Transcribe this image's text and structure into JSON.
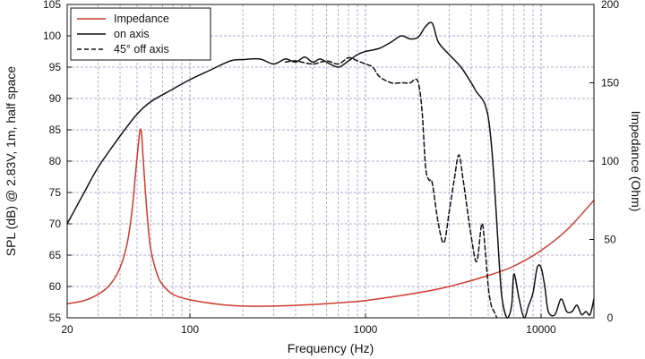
{
  "chart_data": {
    "type": "line",
    "xlabel": "Frequency (Hz)",
    "ylabel": "SPL (dB) @ 2.83V, 1m, half space",
    "y2label": "Impedance (Ohm)",
    "x_scale": "log",
    "xlim": [
      20,
      20000
    ],
    "ylim": [
      55,
      105
    ],
    "y2lim": [
      0,
      200
    ],
    "x_ticks": [
      20,
      100,
      1000,
      10000
    ],
    "x_tick_labels": [
      "20",
      "100",
      "1000",
      "10000"
    ],
    "y_ticks": [
      55,
      60,
      65,
      70,
      75,
      80,
      85,
      90,
      95,
      100,
      105
    ],
    "y_tick_labels": [
      "55",
      "60",
      "65",
      "70",
      "75",
      "80",
      "85",
      "90",
      "95",
      "100",
      "105"
    ],
    "y2_ticks": [
      0,
      50,
      100,
      150,
      200
    ],
    "y2_tick_labels": [
      "0",
      "50",
      "100",
      "150",
      "200"
    ],
    "grid": true,
    "legend_position": "top-left",
    "colors": {
      "impedance": "#cc3b2e",
      "on_axis": "#111111",
      "off_axis": "#111111",
      "grid": "#9a8fc4"
    },
    "series": [
      {
        "name": "Impedance",
        "axis": "right",
        "style": "solid",
        "color": "#cc3b2e",
        "x": [
          20,
          25,
          30,
          35,
          40,
          44,
          47,
          49,
          51,
          52,
          53,
          54,
          56,
          58,
          60,
          65,
          70,
          80,
          100,
          150,
          200,
          300,
          500,
          800,
          1000,
          2000,
          3000,
          5000,
          7000,
          10000,
          14000,
          20000
        ],
        "y": [
          9,
          11,
          15,
          21,
          32,
          48,
          70,
          92,
          112,
          120,
          118,
          104,
          78,
          57,
          43,
          28,
          21,
          15,
          11.5,
          8.5,
          7.5,
          7.5,
          8.5,
          10,
          11,
          16,
          20,
          27,
          33,
          43,
          56,
          75
        ]
      },
      {
        "name": "on axis",
        "axis": "left",
        "style": "solid",
        "color": "#111111",
        "x": [
          20,
          25,
          30,
          40,
          50,
          60,
          80,
          100,
          130,
          170,
          200,
          250,
          300,
          350,
          400,
          450,
          500,
          550,
          600,
          700,
          800,
          900,
          1000,
          1200,
          1400,
          1600,
          1800,
          2000,
          2200,
          2400,
          2600,
          3000,
          3500,
          4000,
          4300,
          4600,
          4800,
          5000,
          5200,
          5400,
          5600,
          5800,
          6000,
          6400,
          6800,
          7000,
          7500,
          8000,
          8500,
          9000,
          9500,
          10000,
          10500,
          11000,
          12000,
          13000,
          14000,
          15000,
          16000,
          17000,
          18000,
          19000,
          20000
        ],
        "y": [
          70,
          75,
          79,
          84,
          87.5,
          89.5,
          91.5,
          93,
          94.5,
          96,
          96.2,
          96.3,
          95.5,
          96.3,
          95.8,
          96.6,
          95.8,
          96.3,
          95.8,
          95,
          96,
          97,
          97.5,
          98,
          99,
          100,
          99.5,
          99.8,
          101.5,
          102,
          99,
          97,
          95,
          92.5,
          91,
          90,
          89,
          87,
          83,
          77,
          70,
          63,
          58,
          55,
          57,
          62,
          58,
          55,
          57,
          59,
          63,
          63,
          60,
          56,
          55.5,
          58,
          56,
          56,
          57,
          55.5,
          56,
          55.5,
          58
        ]
      },
      {
        "name": "45° off axis",
        "axis": "left",
        "style": "dashed",
        "color": "#111111",
        "x": [
          350,
          400,
          500,
          600,
          700,
          800,
          900,
          1000,
          1100,
          1200,
          1400,
          1600,
          1800,
          1900,
          2000,
          2100,
          2200,
          2300,
          2400,
          2600,
          2800,
          3000,
          3200,
          3400,
          3600,
          4000,
          4300,
          4600,
          4800,
          5000,
          5200,
          5400,
          5600
        ],
        "y": [
          95.8,
          96,
          95.5,
          96,
          95.5,
          96.5,
          96,
          95.5,
          95,
          93.5,
          92.5,
          92.5,
          92.5,
          93,
          92.5,
          88,
          79,
          77,
          76.5,
          70,
          67,
          72,
          77,
          81,
          77,
          68,
          64,
          70,
          66,
          60,
          57,
          56,
          55
        ]
      }
    ]
  }
}
